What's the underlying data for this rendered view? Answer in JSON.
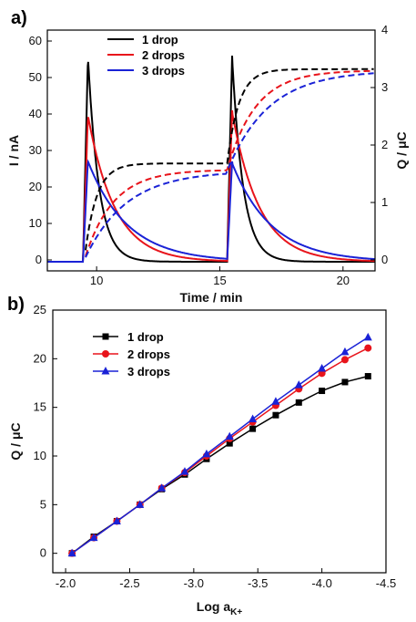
{
  "figure": {
    "panel_a_label": "a)",
    "panel_b_label": "b)",
    "colors": {
      "drop1": "#000000",
      "drop2": "#e8141b",
      "drop3": "#1a22d6"
    }
  },
  "chart_data": [
    {
      "type": "line",
      "title": "",
      "xlabel": "Time / min",
      "ylabel": "I / nA",
      "y2label": "Q / μC",
      "xlim": [
        8,
        21.3
      ],
      "ylim": [
        -3,
        63
      ],
      "y2lim": [
        -0.19,
        4.0
      ],
      "x_ticks": [
        10,
        15,
        20
      ],
      "y_ticks": [
        0,
        10,
        20,
        30,
        40,
        50,
        60
      ],
      "y2_ticks": [
        0,
        1,
        2,
        3,
        4
      ],
      "legend_position": "top-left",
      "series": [
        {
          "name": "1 drop",
          "color": "#000000",
          "peaks": [
            56,
            56
          ],
          "decay_min": [
            0.45,
            0.45
          ],
          "charge": [
            [
              9.5,
              0,
              1.68
            ],
            [
              15.3,
              1.68,
              3.32
            ]
          ]
        },
        {
          "name": "2 drops",
          "color": "#e8141b",
          "peaks": [
            40,
            41
          ],
          "decay_min": [
            1.1,
            1.1
          ],
          "charge": [
            [
              9.5,
              0,
              1.57
            ],
            [
              15.3,
              1.57,
              3.3
            ]
          ]
        },
        {
          "name": "3 drops",
          "color": "#1a22d6",
          "peaks": [
            27.5,
            27
          ],
          "decay_min": [
            1.6,
            1.6
          ],
          "charge": [
            [
              9.5,
              0,
              1.55
            ],
            [
              15.3,
              1.55,
              3.3
            ]
          ]
        }
      ]
    },
    {
      "type": "line",
      "title": "",
      "xlabel": "Log a",
      "xlabel_sub": "K+",
      "ylabel": "Q / μC",
      "xlim": [
        -1.9,
        -4.5
      ],
      "ylim": [
        -2,
        25
      ],
      "x_ticks": [
        -2.0,
        -2.5,
        -3.0,
        -3.5,
        -4.0,
        -4.5
      ],
      "x_tick_labels": [
        "-2.0",
        "-2.5",
        "-3.0",
        "-3.5",
        "-4.0",
        "-4.5"
      ],
      "y_ticks": [
        0,
        5,
        10,
        15,
        20,
        25
      ],
      "legend_position": "top-left",
      "x": [
        -2.05,
        -2.22,
        -2.4,
        -2.58,
        -2.75,
        -2.93,
        -3.1,
        -3.28,
        -3.46,
        -3.64,
        -3.82,
        -4.0,
        -4.18,
        -4.36
      ],
      "series": [
        {
          "name": "1 drop",
          "color": "#000000",
          "marker": "square",
          "values": [
            0,
            1.7,
            3.3,
            5.0,
            6.6,
            8.1,
            9.7,
            11.3,
            12.8,
            14.2,
            15.5,
            16.7,
            17.6,
            18.2
          ]
        },
        {
          "name": "2 drops",
          "color": "#e8141b",
          "marker": "circle",
          "values": [
            0,
            1.6,
            3.3,
            5.0,
            6.7,
            8.3,
            10.0,
            11.8,
            13.5,
            15.2,
            16.9,
            18.5,
            19.9,
            21.1
          ]
        },
        {
          "name": "3 drops",
          "color": "#1a22d6",
          "marker": "triangle",
          "values": [
            0,
            1.6,
            3.3,
            5.0,
            6.7,
            8.4,
            10.2,
            12.0,
            13.8,
            15.6,
            17.3,
            19.0,
            20.7,
            22.2
          ]
        }
      ]
    }
  ]
}
